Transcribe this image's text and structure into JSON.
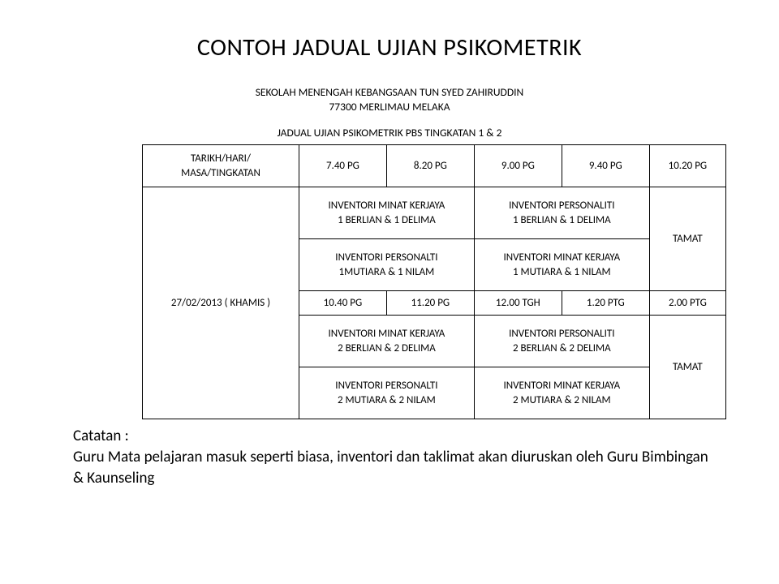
{
  "title": "CONTOH JADUAL UJIAN PSIKOMETRIK",
  "school_line1": "SEKOLAH MENENGAH KEBANGSAAN TUN SYED ZAHIRUDDIN",
  "school_line2": "77300 MERLIMAU MELAKA",
  "schedule_title": "JADUAL UJIAN PSIKOMETRIK PBS TINGKATAN 1 & 2",
  "header": {
    "col0_l1": "TARIKH/HARI/",
    "col0_l2": "MASA/TINGKATAN",
    "t1": "7.40 PG",
    "t2": "8.20 PG",
    "t3": "9.00 PG",
    "t4": "9.40 PG",
    "t5": "10.20 PG"
  },
  "date_label": "27/02/2013  ( KHAMIS )",
  "block1": {
    "r1c1_l1": "INVENTORI MINAT KERJAYA",
    "r1c1_l2": "1 BERLIAN & 1 DELIMA",
    "r1c2_l1": "INVENTORI PERSONALITI",
    "r1c2_l2": "1 BERLIAN & 1 DELIMA",
    "r2c1_l1": "INVENTORI PERSONALTI",
    "r2c1_l2": "1MUTIARA & 1 NILAM",
    "r2c2_l1": "INVENTORI MINAT KERJAYA",
    "r2c2_l2": "1 MUTIARA & 1 NILAM",
    "tamat": "TAMAT"
  },
  "times2": {
    "t1": "10.40 PG",
    "t2": "11.20 PG",
    "t3": "12.00 TGH",
    "t4": "1.20 PTG",
    "t5": "2.00 PTG"
  },
  "block2": {
    "r1c1_l1": "INVENTORI MINAT KERJAYA",
    "r1c1_l2": "2 BERLIAN & 2 DELIMA",
    "r1c2_l1": "INVENTORI PERSONALITI",
    "r1c2_l2": "2 BERLIAN & 2 DELIMA",
    "r2c1_l1": "INVENTORI PERSONALTI",
    "r2c1_l2": "2 MUTIARA & 2  NILAM",
    "r2c2_l1": "INVENTORI MINAT KERJAYA",
    "r2c2_l2": "2 MUTIARA & 2 NILAM",
    "tamat": "TAMAT"
  },
  "notes_label": "Catatan :",
  "notes_body": "Guru Mata pelajaran masuk seperti biasa, inventori dan taklimat akan diuruskan oleh Guru Bimbingan & Kaunseling"
}
